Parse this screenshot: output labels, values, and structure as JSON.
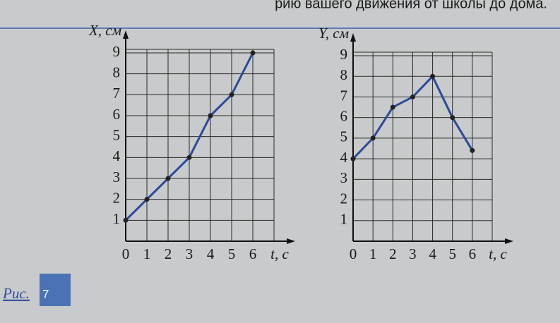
{
  "header": {
    "text": "рию вашего движения от школы до дома."
  },
  "chart_data": [
    {
      "type": "line",
      "ylabel": "X, см",
      "xlabel": "t, с",
      "x": [
        0,
        1,
        2,
        3,
        4,
        5,
        6
      ],
      "values": [
        1,
        2,
        3,
        4,
        6,
        7,
        9
      ],
      "color": "#2b4a9a",
      "xlim": [
        0,
        7
      ],
      "ylim": [
        0,
        9
      ],
      "xticks": [
        0,
        1,
        2,
        3,
        4,
        5,
        6
      ],
      "yticks": [
        1,
        2,
        3,
        4,
        5,
        6,
        7,
        8,
        9
      ],
      "grid": true
    },
    {
      "type": "line",
      "ylabel": "Y, см",
      "xlabel": "t, с",
      "x": [
        0,
        1,
        2,
        3,
        4,
        5,
        6
      ],
      "values": [
        4,
        5,
        6.5,
        7,
        8,
        6,
        4.4
      ],
      "color": "#2b4a9a",
      "xlim": [
        0,
        7
      ],
      "ylim": [
        0,
        9
      ],
      "xticks": [
        0,
        1,
        2,
        3,
        4,
        5,
        6
      ],
      "yticks": [
        1,
        2,
        3,
        4,
        5,
        6,
        7,
        8,
        9
      ],
      "grid": true
    }
  ],
  "caption": {
    "label": "Рис.",
    "number": "7"
  }
}
